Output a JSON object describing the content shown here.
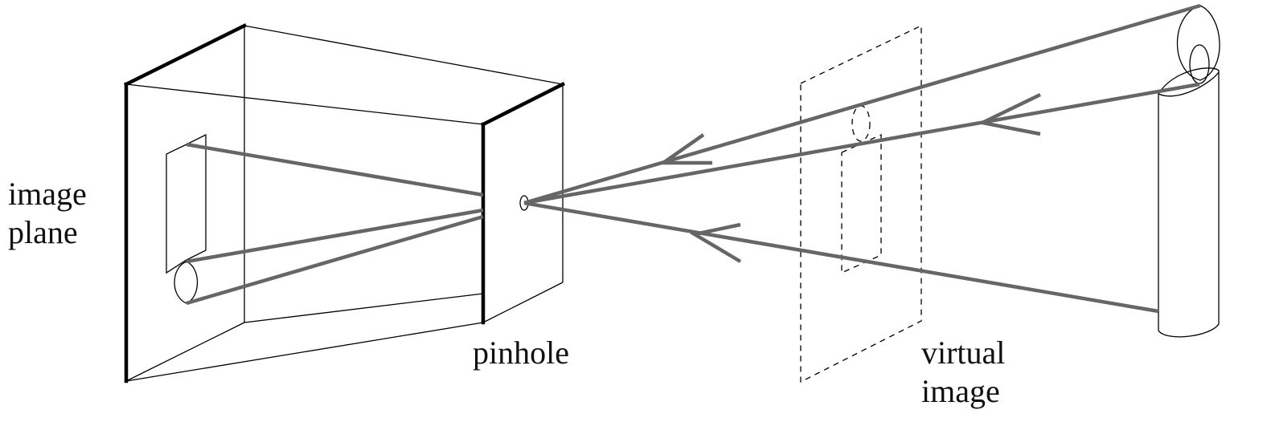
{
  "labels": {
    "image_plane": [
      "image",
      "plane"
    ],
    "pinhole": "pinhole",
    "virtual_image": [
      "virtual",
      "image"
    ]
  },
  "colors": {
    "ray": "#666666",
    "box_edge": "#000000",
    "background": "#ffffff"
  }
}
